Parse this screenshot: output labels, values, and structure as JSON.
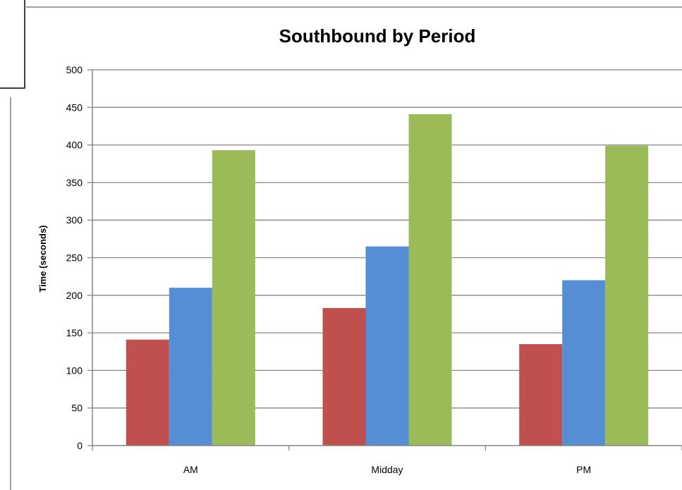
{
  "chart_data": {
    "type": "bar",
    "title": "Southbound by Period",
    "ylabel": "Time (seconds)",
    "xlabel": "",
    "categories": [
      "AM",
      "Midday",
      "PM"
    ],
    "series": [
      {
        "values": [
          141,
          183,
          135
        ],
        "color": "#c0504d"
      },
      {
        "values": [
          210,
          265,
          220
        ],
        "color": "#558ed5"
      },
      {
        "values": [
          393,
          441,
          399
        ],
        "color": "#9bbb59"
      }
    ],
    "ylim": [
      0,
      500
    ],
    "yticks": [
      0,
      50,
      100,
      150,
      200,
      250,
      300,
      350,
      400,
      450,
      500
    ],
    "grid": true,
    "legend": "none"
  }
}
